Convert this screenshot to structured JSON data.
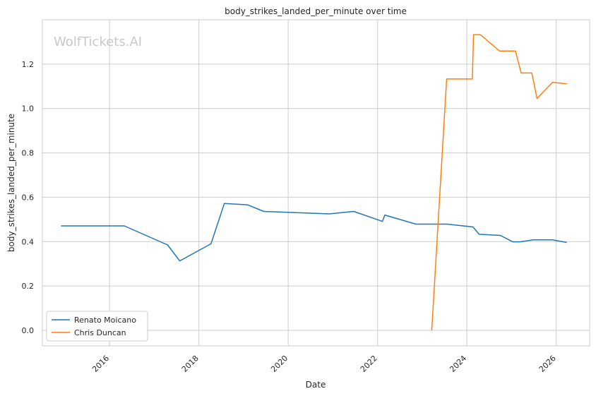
{
  "chart_data": {
    "type": "line",
    "title": "body_strikes_landed_per_minute over time",
    "xlabel": "Date",
    "ylabel": "body_strikes_landed_per_minute",
    "watermark": "WolfTickets.AI",
    "x_ticks": [
      "2016",
      "2018",
      "2020",
      "2022",
      "2024",
      "2026"
    ],
    "y_ticks": [
      "0.0",
      "0.2",
      "0.4",
      "0.6",
      "0.8",
      "1.0",
      "1.2"
    ],
    "xlim": [
      "2014-07-01",
      "2026-10-01"
    ],
    "ylim": [
      -0.07,
      1.4
    ],
    "grid": true,
    "legend_position": "lower-left",
    "series": [
      {
        "name": "Renato Moicano",
        "color": "#1f77b4",
        "points": [
          [
            "2014-12-01",
            0.471
          ],
          [
            "2016-05-01",
            0.471
          ],
          [
            "2017-04-20",
            0.385
          ],
          [
            "2017-07-28",
            0.313
          ],
          [
            "2018-04-10",
            0.39
          ],
          [
            "2018-07-28",
            0.572
          ],
          [
            "2019-02-01",
            0.566
          ],
          [
            "2019-06-15",
            0.536
          ],
          [
            "2020-12-01",
            0.525
          ],
          [
            "2021-06-20",
            0.536
          ],
          [
            "2022-02-10",
            0.491
          ],
          [
            "2022-03-01",
            0.52
          ],
          [
            "2022-11-10",
            0.479
          ],
          [
            "2023-07-20",
            0.479
          ],
          [
            "2024-02-20",
            0.466
          ],
          [
            "2024-04-10",
            0.433
          ],
          [
            "2024-10-01",
            0.428
          ],
          [
            "2025-01-10",
            0.399
          ],
          [
            "2025-03-10",
            0.399
          ],
          [
            "2025-06-28",
            0.408
          ],
          [
            "2025-12-01",
            0.408
          ],
          [
            "2026-03-28",
            0.396
          ]
        ]
      },
      {
        "name": "Chris Duncan",
        "color": "#ff7f0e",
        "points": [
          [
            "2023-03-20",
            0.0
          ],
          [
            "2023-07-20",
            1.133
          ],
          [
            "2024-02-15",
            1.133
          ],
          [
            "2024-02-25",
            1.333
          ],
          [
            "2024-04-20",
            1.333
          ],
          [
            "2024-09-25",
            1.259
          ],
          [
            "2025-02-01",
            1.259
          ],
          [
            "2025-03-20",
            1.16
          ],
          [
            "2025-06-15",
            1.16
          ],
          [
            "2025-07-28",
            1.045
          ],
          [
            "2025-12-01",
            1.118
          ],
          [
            "2026-03-28",
            1.111
          ]
        ]
      }
    ]
  }
}
